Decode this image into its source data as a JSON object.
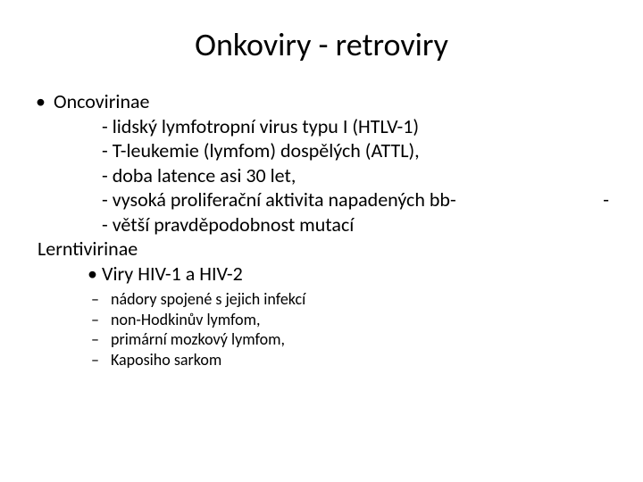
{
  "title": "Onkoviry - retroviry",
  "lines": {
    "onco": "Oncovirinae",
    "l1": "- lidský lymfotropní virus typu I (HTLV-1)",
    "l2": "- T-leukemie (lymfom) dospělých (ATTL),",
    "l3": "- doba latence asi 30 let,",
    "l4": "- vysoká proliferační aktivita napadených bb-",
    "l4r": "-",
    "l5": "- větší pravděpodobnost mutací",
    "lern": "Lerntivirinae",
    "hiv": "Viry HIV-1 a HIV-2"
  },
  "dashes": {
    "d1": "nádory spojené s jejich infekcí",
    "d2": "non-Hodkinův lymfom,",
    "d3": "primární mozkový lymfom,",
    "d4": "Kaposiho sarkom"
  },
  "style": {
    "bg": "#ffffff",
    "fg": "#000000",
    "title_fontsize": 36,
    "body_fontsize": 22,
    "dash_fontsize": 18,
    "font_family": "Calibri"
  }
}
